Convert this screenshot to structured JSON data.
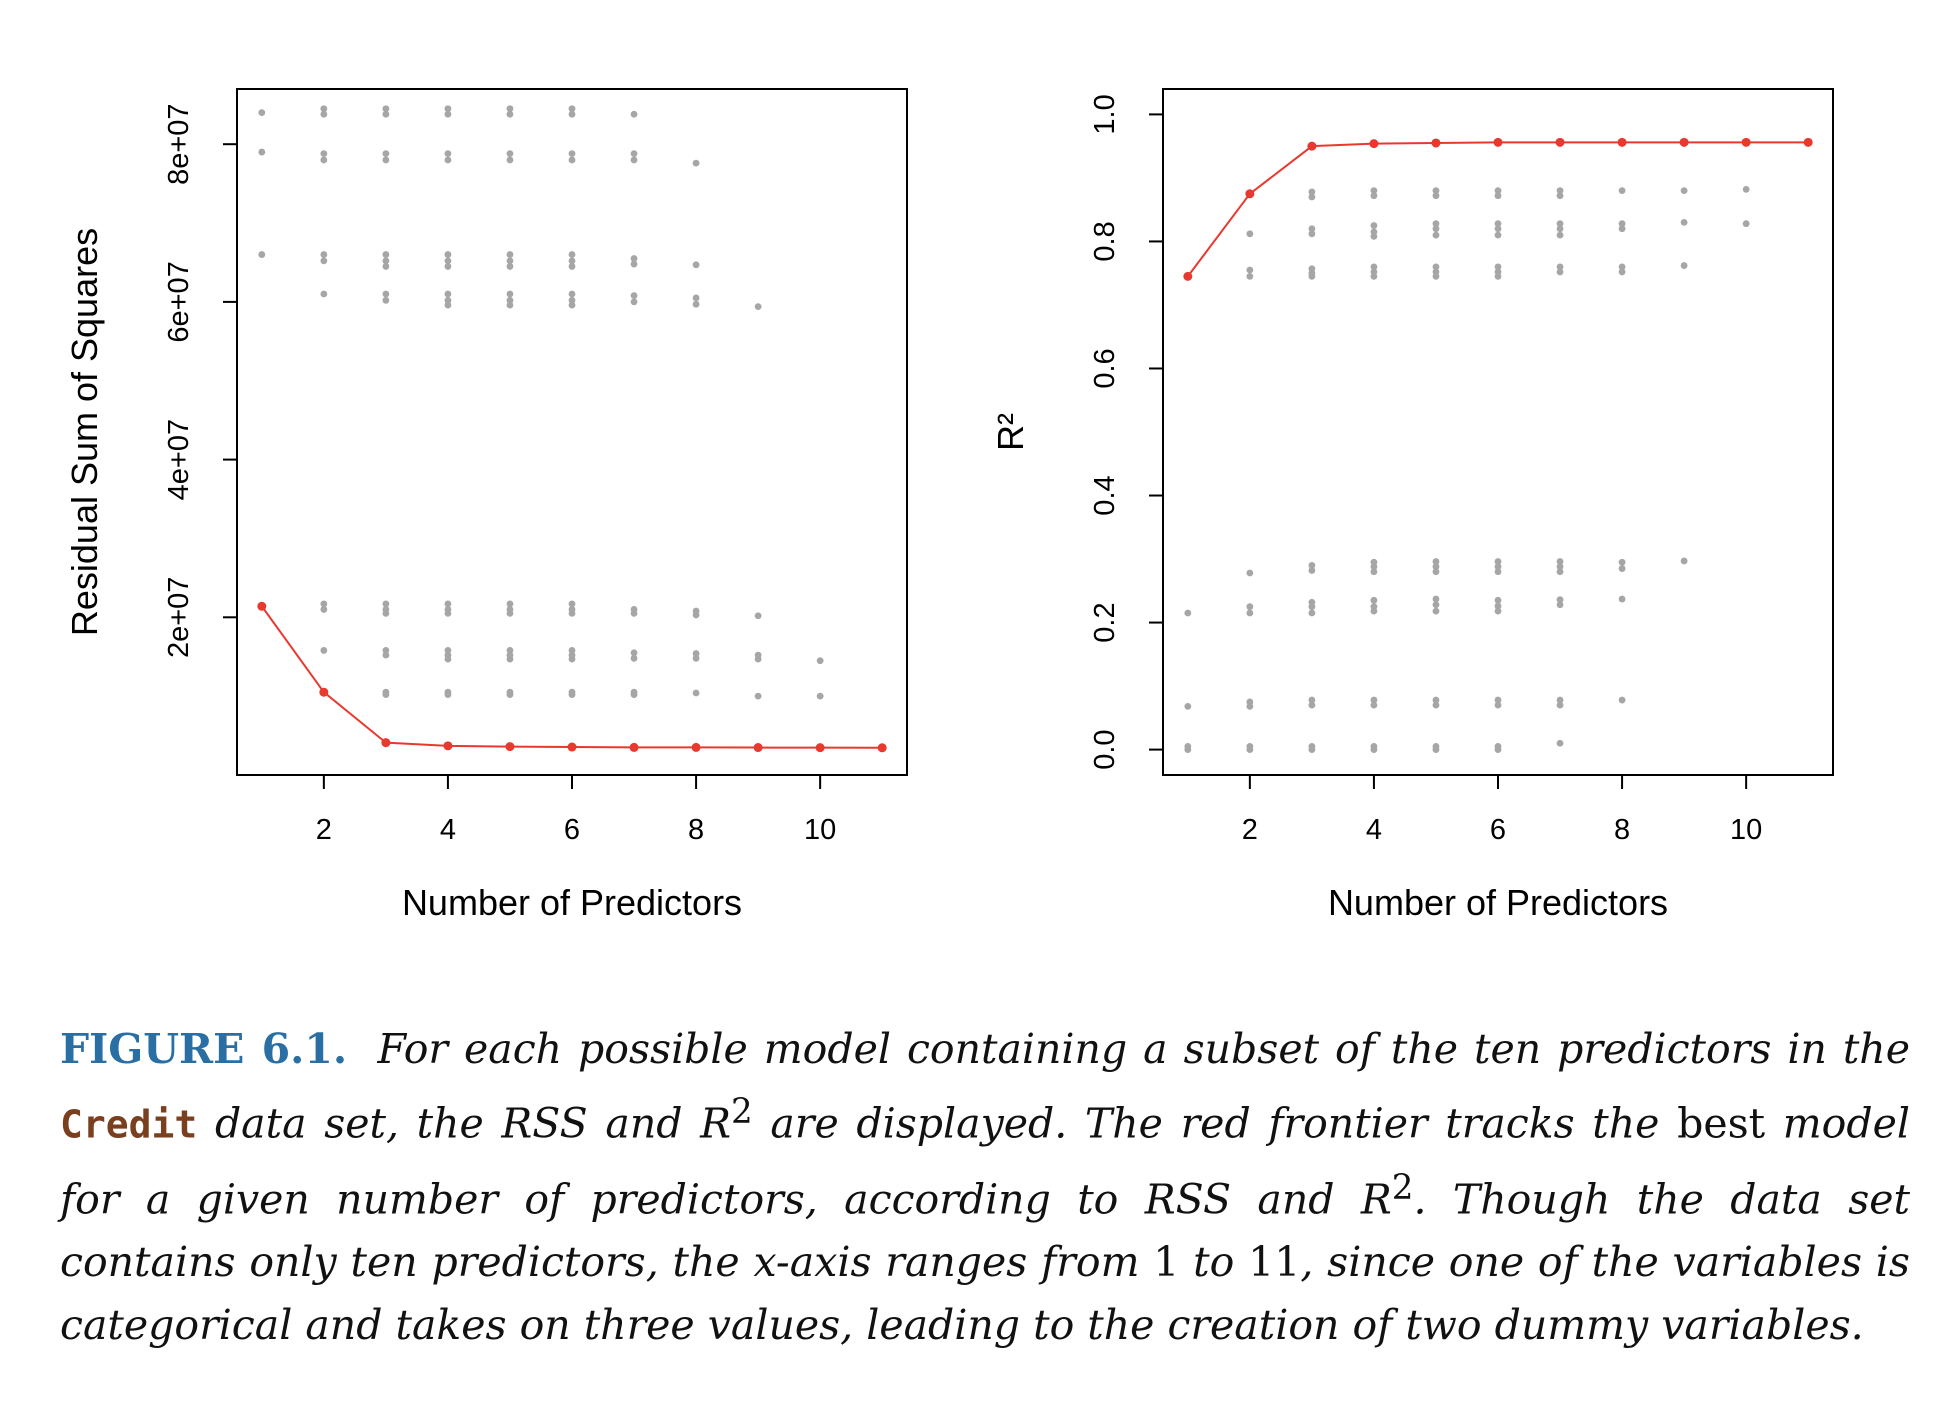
{
  "chart_data": [
    {
      "type": "scatter",
      "title": "",
      "xlabel": "Number of Predictors",
      "ylabel": "Residual Sum of Squares",
      "xlim": [
        0.6,
        11.4
      ],
      "ylim": [
        0,
        87000000
      ],
      "xticks": [
        2,
        4,
        6,
        8,
        10
      ],
      "yticks": [
        20000000,
        40000000,
        60000000,
        80000000
      ],
      "ytick_labels": [
        "2e+07",
        "4e+07",
        "6e+07",
        "8e+07"
      ],
      "grid": false,
      "points_color": "#a6a6a6",
      "points": [
        {
          "x": 1,
          "y": [
            84000000,
            79000000,
            66000000,
            21500000
          ]
        },
        {
          "x": 2,
          "y": [
            84500000,
            83800000,
            78800000,
            78000000,
            66000000,
            65200000,
            61000000,
            21700000,
            21000000,
            15800000,
            10500000
          ]
        },
        {
          "x": 3,
          "y": [
            84500000,
            83800000,
            78800000,
            78000000,
            66000000,
            65200000,
            64500000,
            61000000,
            60200000,
            21700000,
            21000000,
            20500000,
            15800000,
            15200000,
            10500000,
            10200000,
            4000000
          ]
        },
        {
          "x": 4,
          "y": [
            84500000,
            83800000,
            78800000,
            78000000,
            66000000,
            65200000,
            64500000,
            61000000,
            60200000,
            59600000,
            21700000,
            21000000,
            20500000,
            15800000,
            15200000,
            14700000,
            10500000,
            10200000,
            3700000
          ]
        },
        {
          "x": 5,
          "y": [
            84500000,
            83800000,
            78800000,
            78000000,
            66000000,
            65200000,
            64500000,
            61000000,
            60200000,
            59600000,
            21700000,
            21000000,
            20500000,
            15800000,
            15200000,
            14700000,
            10500000,
            10200000,
            3600000
          ]
        },
        {
          "x": 6,
          "y": [
            84500000,
            83800000,
            78800000,
            78000000,
            66000000,
            65200000,
            64500000,
            61000000,
            60200000,
            59600000,
            21700000,
            21000000,
            20500000,
            15800000,
            15200000,
            14700000,
            10500000,
            10200000,
            3500000
          ]
        },
        {
          "x": 7,
          "y": [
            83800000,
            78800000,
            78000000,
            65500000,
            64800000,
            60800000,
            60000000,
            21000000,
            20500000,
            15500000,
            14800000,
            10500000,
            10200000,
            3500000
          ]
        },
        {
          "x": 8,
          "y": [
            77600000,
            64700000,
            60500000,
            59700000,
            20800000,
            20300000,
            15400000,
            14800000,
            10400000,
            3500000
          ]
        },
        {
          "x": 9,
          "y": [
            59400000,
            20200000,
            15200000,
            14700000,
            10000000,
            3500000
          ]
        },
        {
          "x": 10,
          "y": [
            14500000,
            10000000,
            3500000
          ]
        },
        {
          "x": 11,
          "y": [
            3400000
          ]
        }
      ],
      "series": [
        {
          "color": "#e8392e",
          "x": [
            1,
            2,
            3,
            4,
            5,
            6,
            7,
            8,
            9,
            10,
            11
          ],
          "values": [
            21400000,
            10500000,
            4100000,
            3700000,
            3600000,
            3550000,
            3500000,
            3500000,
            3480000,
            3470000,
            3450000
          ]
        }
      ]
    },
    {
      "type": "scatter",
      "title": "",
      "xlabel": "Number of Predictors",
      "ylabel": "R²",
      "xlim": [
        0.6,
        11.4
      ],
      "ylim": [
        -0.04,
        1.04
      ],
      "xticks": [
        2,
        4,
        6,
        8,
        10
      ],
      "yticks": [
        0.0,
        0.2,
        0.4,
        0.6,
        0.8,
        1.0
      ],
      "ytick_labels": [
        "0.0",
        "0.2",
        "0.4",
        "0.6",
        "0.8",
        "1.0"
      ],
      "grid": false,
      "points_color": "#a6a6a6",
      "points": [
        {
          "x": 1,
          "y": [
            0.745,
            0.215,
            0.068,
            0.005,
            0.0
          ]
        },
        {
          "x": 2,
          "y": [
            0.875,
            0.812,
            0.755,
            0.745,
            0.278,
            0.225,
            0.215,
            0.075,
            0.068,
            0.005,
            0.0
          ]
        },
        {
          "x": 3,
          "y": [
            0.95,
            0.878,
            0.87,
            0.82,
            0.812,
            0.757,
            0.75,
            0.745,
            0.29,
            0.282,
            0.232,
            0.225,
            0.215,
            0.078,
            0.07,
            0.005,
            0.0
          ]
        },
        {
          "x": 4,
          "y": [
            0.955,
            0.88,
            0.872,
            0.825,
            0.815,
            0.808,
            0.76,
            0.752,
            0.745,
            0.295,
            0.288,
            0.28,
            0.235,
            0.225,
            0.218,
            0.078,
            0.07,
            0.005,
            0.0
          ]
        },
        {
          "x": 5,
          "y": [
            0.955,
            0.88,
            0.872,
            0.828,
            0.82,
            0.81,
            0.76,
            0.752,
            0.745,
            0.296,
            0.288,
            0.28,
            0.237,
            0.228,
            0.218,
            0.078,
            0.07,
            0.005,
            0.0
          ]
        },
        {
          "x": 6,
          "y": [
            0.956,
            0.88,
            0.872,
            0.828,
            0.82,
            0.81,
            0.76,
            0.752,
            0.745,
            0.296,
            0.288,
            0.28,
            0.235,
            0.226,
            0.218,
            0.078,
            0.07,
            0.005,
            0.0
          ]
        },
        {
          "x": 7,
          "y": [
            0.956,
            0.88,
            0.872,
            0.828,
            0.82,
            0.81,
            0.76,
            0.752,
            0.296,
            0.288,
            0.28,
            0.236,
            0.228,
            0.078,
            0.07,
            0.01
          ]
        },
        {
          "x": 8,
          "y": [
            0.956,
            0.88,
            0.828,
            0.82,
            0.76,
            0.752,
            0.295,
            0.285,
            0.237,
            0.078
          ]
        },
        {
          "x": 9,
          "y": [
            0.956,
            0.88,
            0.83,
            0.762,
            0.297
          ]
        },
        {
          "x": 10,
          "y": [
            0.956,
            0.882,
            0.828
          ]
        },
        {
          "x": 11,
          "y": [
            0.956
          ]
        }
      ],
      "series": [
        {
          "color": "#e8392e",
          "x": [
            1,
            2,
            3,
            4,
            5,
            6,
            7,
            8,
            9,
            10,
            11
          ],
          "values": [
            0.745,
            0.875,
            0.95,
            0.954,
            0.955,
            0.956,
            0.956,
            0.956,
            0.956,
            0.956,
            0.956
          ]
        }
      ]
    }
  ],
  "caption": {
    "label": "FIGURE 6.1.",
    "p1": "For each possible model containing a subset of the ten predictors in the",
    "code": "Credit",
    "p2": "data set, the RSS and",
    "r_symbol": "R",
    "sup1": "2",
    "p3": "are displayed. The red frontier tracks the",
    "p4": "best",
    "p5": "model for a given number of predictors, according to RSS and",
    "sup2": "2",
    "p6": ". Though the data set contains only ten predictors, the",
    "p7": "x",
    "p8": "-axis ranges from",
    "n1": "1",
    "p9": "to",
    "n2": "11",
    "p10": ", since one of the variables is categorical and takes on three values, leading to the creation of two dummy variables."
  }
}
